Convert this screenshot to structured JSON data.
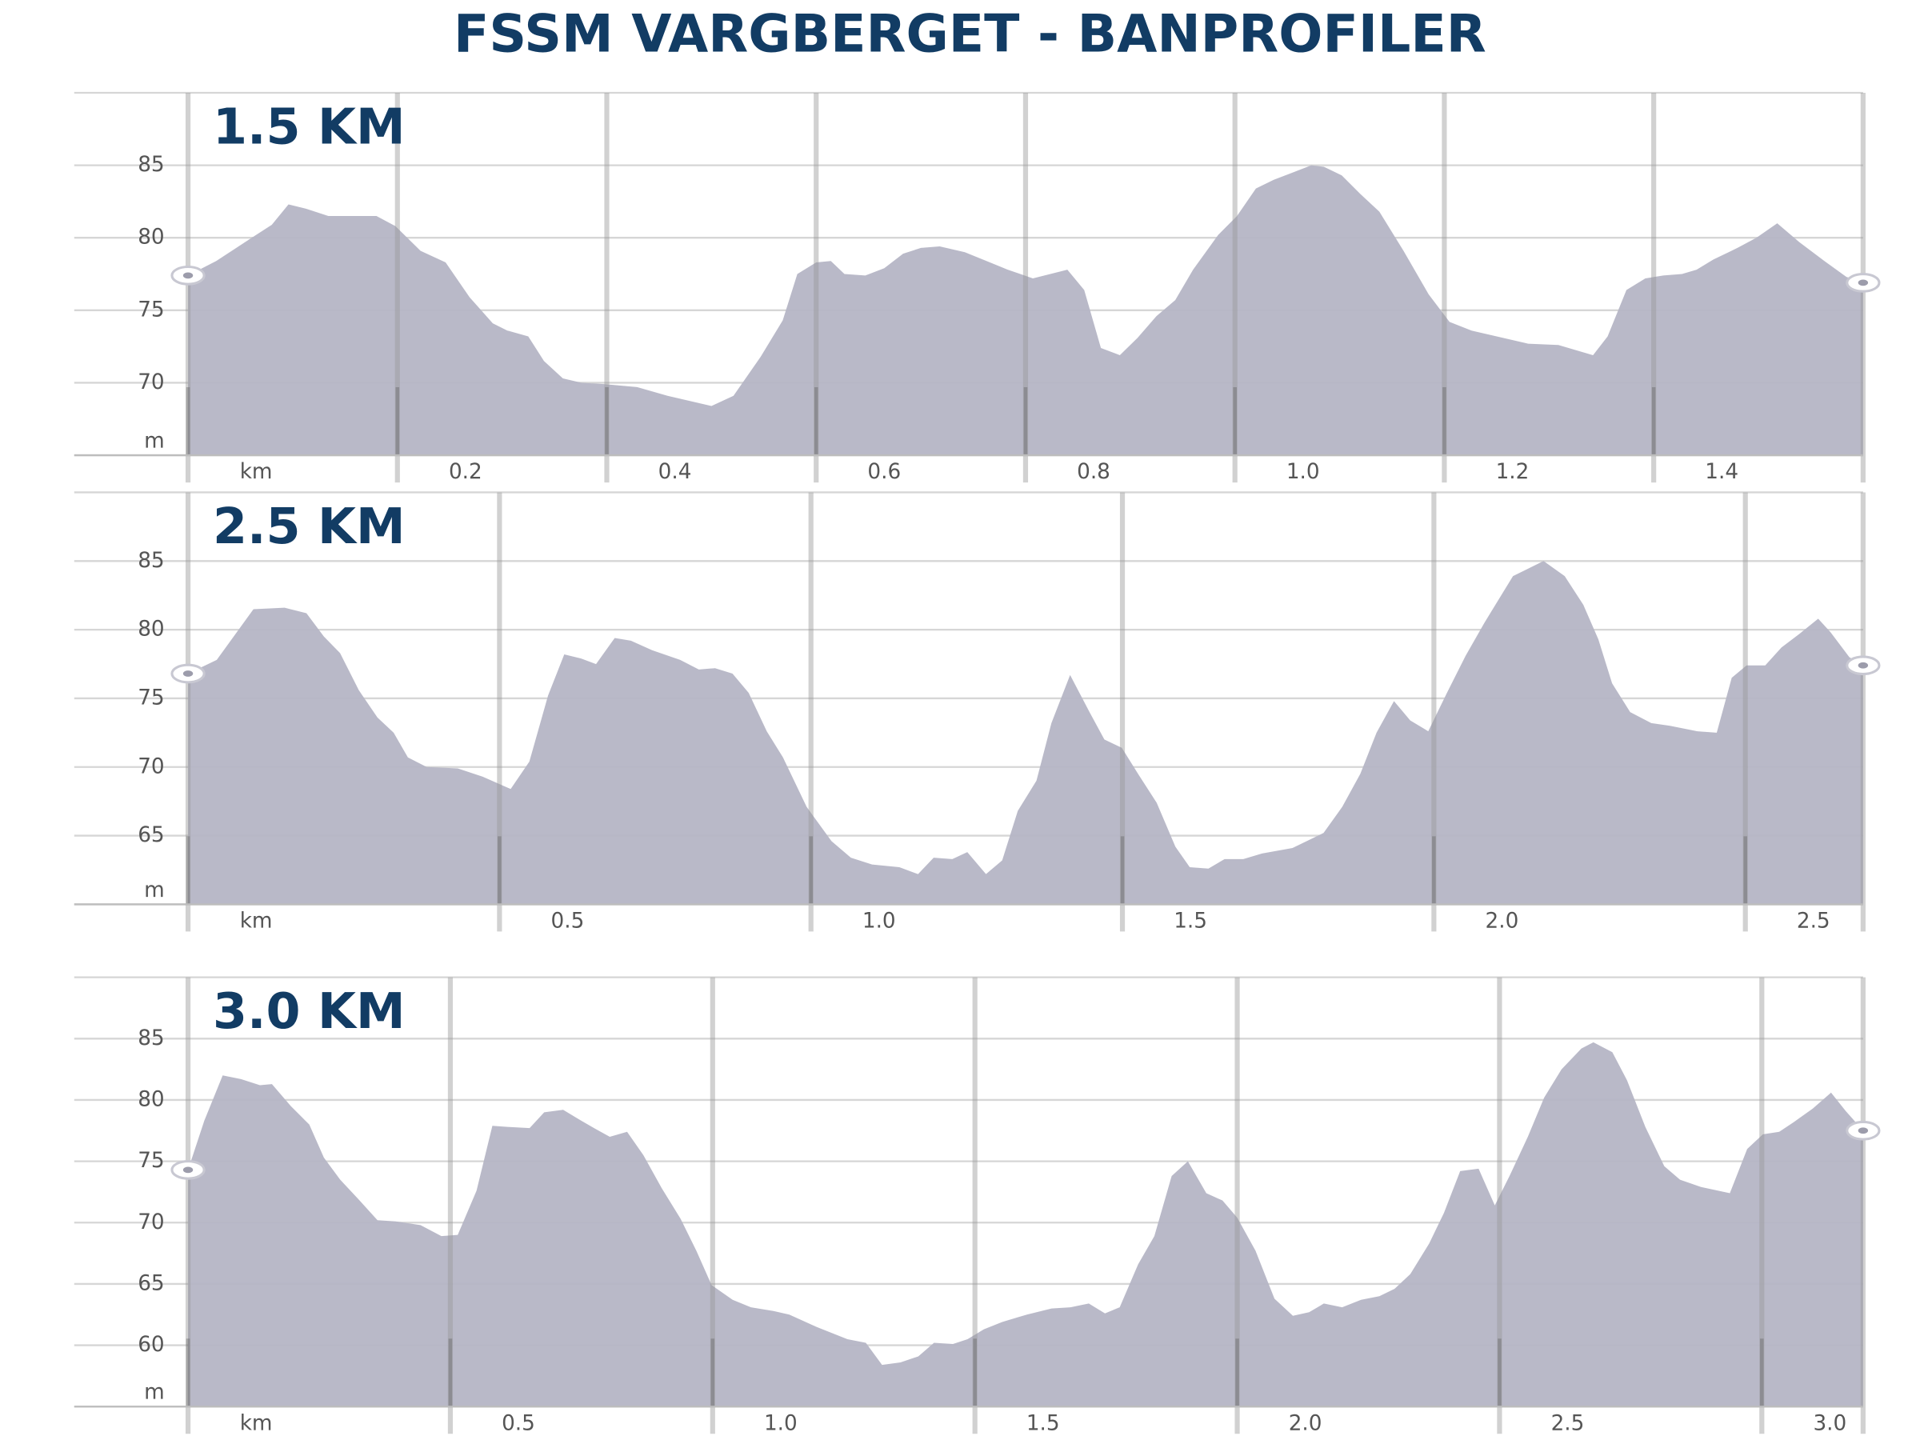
{
  "title": "FSSM VARGBERGET - BANPROFILER",
  "chart_data": [
    {
      "type": "area",
      "title": "1.5 KM",
      "color": "#b5b5c5",
      "x": [
        0,
        0.027,
        0.063,
        0.08,
        0.096,
        0.113,
        0.134,
        0.157,
        0.18,
        0.198,
        0.222,
        0.246,
        0.269,
        0.291,
        0.305,
        0.325,
        0.34,
        0.358,
        0.376,
        0.399,
        0.429,
        0.458,
        0.5,
        0.521,
        0.547,
        0.568,
        0.582,
        0.6,
        0.614,
        0.627,
        0.647,
        0.665,
        0.683,
        0.7,
        0.718,
        0.742,
        0.766,
        0.783,
        0.807,
        0.84,
        0.856,
        0.872,
        0.89,
        0.907,
        0.925,
        0.943,
        0.96,
        0.984,
        1.002,
        1.02,
        1.037,
        1.055,
        1.073,
        1.085,
        1.102,
        1.12,
        1.138,
        1.161,
        1.185,
        1.205,
        1.226,
        1.25,
        1.28,
        1.309,
        1.342,
        1.356,
        1.374,
        1.392,
        1.409,
        1.427,
        1.441,
        1.457,
        1.48,
        1.498,
        1.518,
        1.539,
        1.563,
        1.584,
        1.6
      ],
      "values": [
        77.4,
        78.4,
        80.1,
        80.9,
        82.3,
        82.0,
        81.5,
        81.5,
        81.5,
        80.8,
        79.1,
        78.3,
        75.9,
        74.1,
        73.6,
        73.2,
        71.5,
        70.3,
        70.0,
        69.9,
        69.7,
        69.1,
        68.4,
        69.1,
        71.8,
        74.3,
        77.5,
        78.3,
        78.4,
        77.5,
        77.4,
        77.9,
        78.9,
        79.3,
        79.4,
        79.0,
        78.3,
        77.8,
        77.2,
        77.8,
        76.4,
        72.4,
        71.9,
        73.1,
        74.6,
        75.7,
        77.8,
        80.2,
        81.5,
        83.4,
        84.0,
        84.5,
        85.0,
        84.9,
        84.3,
        83.0,
        81.8,
        79.1,
        76.1,
        74.2,
        73.6,
        73.2,
        72.7,
        72.6,
        71.9,
        73.2,
        76.4,
        77.2,
        77.4,
        77.5,
        77.8,
        78.5,
        79.3,
        80.0,
        81.0,
        79.7,
        78.4,
        77.3,
        76.9
      ],
      "xlim": [
        0,
        1.6
      ],
      "xticks": [
        {
          "value": 0,
          "label": "km"
        },
        0.2,
        0.4,
        0.6,
        0.8,
        {
          "value": 1.0,
          "label": "1.0"
        },
        1.2,
        1.4
      ],
      "ylim": [
        65,
        90
      ],
      "yticks": [
        {
          "value": 65,
          "label": "m"
        },
        70,
        75,
        80,
        85
      ],
      "grid": true
    },
    {
      "type": "area",
      "title": "2.5 KM",
      "color": "#b5b5c5",
      "x": [
        0,
        0.046,
        0.105,
        0.155,
        0.19,
        0.218,
        0.244,
        0.274,
        0.304,
        0.33,
        0.353,
        0.383,
        0.433,
        0.473,
        0.518,
        0.548,
        0.578,
        0.604,
        0.631,
        0.655,
        0.685,
        0.711,
        0.745,
        0.79,
        0.82,
        0.846,
        0.874,
        0.9,
        0.929,
        0.955,
        0.993,
        1.033,
        1.064,
        1.098,
        1.142,
        1.172,
        1.197,
        1.227,
        1.251,
        1.281,
        1.307,
        1.332,
        1.362,
        1.386,
        1.416,
        1.446,
        1.471,
        1.499,
        1.525,
        1.555,
        1.585,
        1.608,
        1.638,
        1.664,
        1.694,
        1.724,
        1.773,
        1.823,
        1.853,
        1.882,
        1.908,
        1.936,
        1.962,
        1.991,
        2.021,
        2.051,
        2.081,
        2.127,
        2.176,
        2.21,
        2.24,
        2.264,
        2.286,
        2.315,
        2.349,
        2.379,
        2.423,
        2.454,
        2.478,
        2.502,
        2.532,
        2.558,
        2.587,
        2.617,
        2.637,
        2.667,
        2.689
      ],
      "values": [
        76.8,
        77.8,
        81.5,
        81.6,
        81.2,
        79.5,
        78.3,
        75.6,
        73.6,
        72.5,
        70.7,
        70.0,
        69.9,
        69.3,
        68.4,
        70.4,
        75.2,
        78.2,
        77.9,
        77.5,
        79.4,
        79.2,
        78.5,
        77.8,
        77.1,
        77.2,
        76.8,
        75.4,
        72.6,
        70.7,
        67.1,
        64.6,
        63.4,
        62.9,
        62.7,
        62.2,
        63.4,
        63.3,
        63.8,
        62.2,
        63.2,
        66.8,
        69.0,
        73.2,
        76.7,
        74.1,
        72.0,
        71.4,
        69.5,
        67.4,
        64.2,
        62.7,
        62.6,
        63.3,
        63.3,
        63.7,
        64.1,
        65.2,
        67.1,
        69.5,
        72.5,
        74.8,
        73.4,
        72.6,
        75.4,
        78.1,
        80.5,
        83.9,
        85.0,
        83.9,
        81.8,
        79.3,
        76.1,
        74.0,
        73.2,
        73.0,
        72.6,
        72.5,
        76.5,
        77.4,
        77.4,
        78.7,
        79.7,
        80.8,
        79.8,
        78.0,
        77.4
      ],
      "xlim": [
        0,
        2.689
      ],
      "xticks": [
        {
          "value": 0,
          "label": "km"
        },
        0.5,
        {
          "value": 1.0,
          "label": "1.0"
        },
        1.5,
        {
          "value": 2.0,
          "label": "2.0"
        },
        2.5
      ],
      "ylim": [
        60,
        90
      ],
      "yticks": [
        {
          "value": 60,
          "label": "m"
        },
        65,
        70,
        75,
        80,
        85
      ],
      "grid": true
    },
    {
      "type": "area",
      "title": "3.0 KM",
      "color": "#b5b5c5",
      "x": [
        0,
        0.031,
        0.066,
        0.101,
        0.137,
        0.16,
        0.196,
        0.231,
        0.259,
        0.29,
        0.325,
        0.361,
        0.396,
        0.443,
        0.483,
        0.514,
        0.55,
        0.58,
        0.613,
        0.651,
        0.679,
        0.715,
        0.75,
        0.774,
        0.804,
        0.837,
        0.868,
        0.903,
        0.939,
        0.969,
        0.998,
        1.038,
        1.073,
        1.116,
        1.146,
        1.198,
        1.257,
        1.292,
        1.323,
        1.358,
        1.392,
        1.422,
        1.458,
        1.486,
        1.517,
        1.552,
        1.599,
        1.646,
        1.682,
        1.717,
        1.748,
        1.776,
        1.811,
        1.842,
        1.875,
        1.906,
        1.941,
        1.972,
        2.0,
        2.035,
        2.071,
        2.106,
        2.137,
        2.165,
        2.2,
        2.236,
        2.271,
        2.3,
        2.33,
        2.366,
        2.394,
        2.425,
        2.46,
        2.491,
        2.519,
        2.554,
        2.585,
        2.618,
        2.656,
        2.679,
        2.715,
        2.743,
        2.778,
        2.814,
        2.844,
        2.884,
        2.939,
        2.972,
        3.002,
        3.033,
        3.061,
        3.097,
        3.132,
        3.16,
        3.193
      ],
      "values": [
        74.3,
        78.3,
        82.0,
        81.7,
        81.2,
        81.3,
        79.5,
        78.0,
        75.3,
        73.5,
        71.9,
        70.2,
        70.1,
        69.8,
        68.9,
        69.0,
        72.6,
        77.9,
        77.8,
        77.7,
        79.0,
        79.2,
        78.3,
        77.7,
        77.0,
        77.4,
        75.5,
        72.8,
        70.3,
        67.7,
        64.9,
        63.7,
        63.1,
        62.8,
        62.5,
        61.5,
        60.5,
        60.2,
        58.4,
        58.6,
        59.1,
        60.2,
        60.1,
        60.5,
        61.3,
        61.9,
        62.5,
        63.0,
        63.1,
        63.4,
        62.6,
        63.1,
        66.6,
        68.9,
        73.8,
        75.0,
        72.4,
        71.8,
        70.4,
        67.7,
        63.8,
        62.4,
        62.7,
        63.4,
        63.1,
        63.7,
        64.0,
        64.6,
        65.8,
        68.3,
        70.8,
        74.2,
        74.4,
        71.4,
        73.8,
        77.0,
        80.2,
        82.5,
        84.2,
        84.7,
        83.9,
        81.6,
        77.8,
        74.6,
        73.5,
        72.9,
        72.4,
        76.0,
        77.2,
        77.4,
        78.2,
        79.3,
        80.6,
        79.1,
        77.5
      ],
      "xlim": [
        0,
        3.193
      ],
      "xticks": [
        {
          "value": 0,
          "label": "km"
        },
        0.5,
        {
          "value": 1.0,
          "label": "1.0"
        },
        1.5,
        {
          "value": 2.0,
          "label": "2.0"
        },
        2.5,
        {
          "value": 3.0,
          "label": "3.0"
        }
      ],
      "ylim": [
        55,
        90
      ],
      "yticks": [
        {
          "value": 55,
          "label": "m"
        },
        60,
        65,
        70,
        75,
        80,
        85
      ],
      "grid": true
    }
  ]
}
